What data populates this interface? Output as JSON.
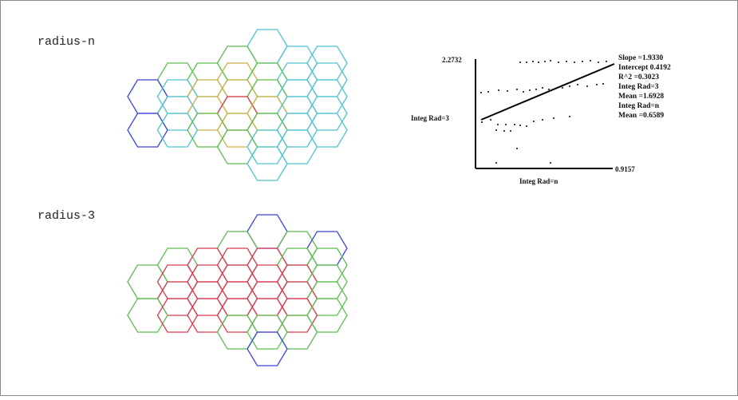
{
  "panels": [
    {
      "id": "top",
      "label": "radius-n"
    },
    {
      "id": "bottom",
      "label": "radius-3"
    }
  ],
  "scatter": {
    "y_max_label": "2.2732",
    "x_max_label": "0.9157",
    "ylabel": "Integ Rad=3",
    "xlabel": "Integ Rad=n",
    "stats": [
      "Slope =1.9330",
      "Intercept 0.4192",
      "R^2 =0.3023",
      "Integ Rad=3",
      "Mean =1.6928",
      "Integ Rad=n",
      "Mean =0.6589"
    ]
  },
  "colors": {
    "blue": "#3b45d8",
    "cyan": "#4fc3cf",
    "green": "#5cbf4e",
    "olive": "#c9b24a",
    "red": "#d83a52",
    "frame": "#888888"
  },
  "grid_top": [
    [
      null,
      null,
      null,
      null,
      "cyan",
      null,
      null
    ],
    [
      null,
      null,
      null,
      "green",
      null,
      "cyan",
      "cyan"
    ],
    [
      null,
      "green",
      "green",
      "olive",
      "green",
      "cyan",
      "cyan"
    ],
    [
      "blue",
      "cyan",
      "olive",
      "olive",
      "green",
      "cyan",
      "cyan"
    ],
    [
      null,
      "cyan",
      "olive",
      "red",
      "olive",
      "cyan",
      "cyan"
    ],
    [
      "blue",
      "cyan",
      "green",
      "olive",
      "green",
      "cyan",
      "cyan"
    ],
    [
      null,
      null,
      null,
      "green",
      "cyan",
      "cyan",
      null
    ],
    [
      null,
      null,
      null,
      null,
      "cyan",
      null,
      null
    ]
  ],
  "grid_bottom": [
    [
      null,
      null,
      null,
      null,
      "blue",
      null,
      null
    ],
    [
      null,
      null,
      null,
      "green",
      null,
      "green",
      "blue"
    ],
    [
      null,
      "green",
      "red",
      "red",
      "red",
      "green",
      "green"
    ],
    [
      "green",
      "red",
      "red",
      "red",
      "red",
      "red",
      "green"
    ],
    [
      null,
      "red",
      "red",
      "red",
      "red",
      "red",
      "green"
    ],
    [
      "green",
      "red",
      "red",
      "red",
      "red",
      "red",
      "green"
    ],
    [
      null,
      null,
      null,
      "green",
      "green",
      "green",
      null
    ],
    [
      null,
      null,
      null,
      null,
      "blue",
      null,
      null
    ]
  ]
}
